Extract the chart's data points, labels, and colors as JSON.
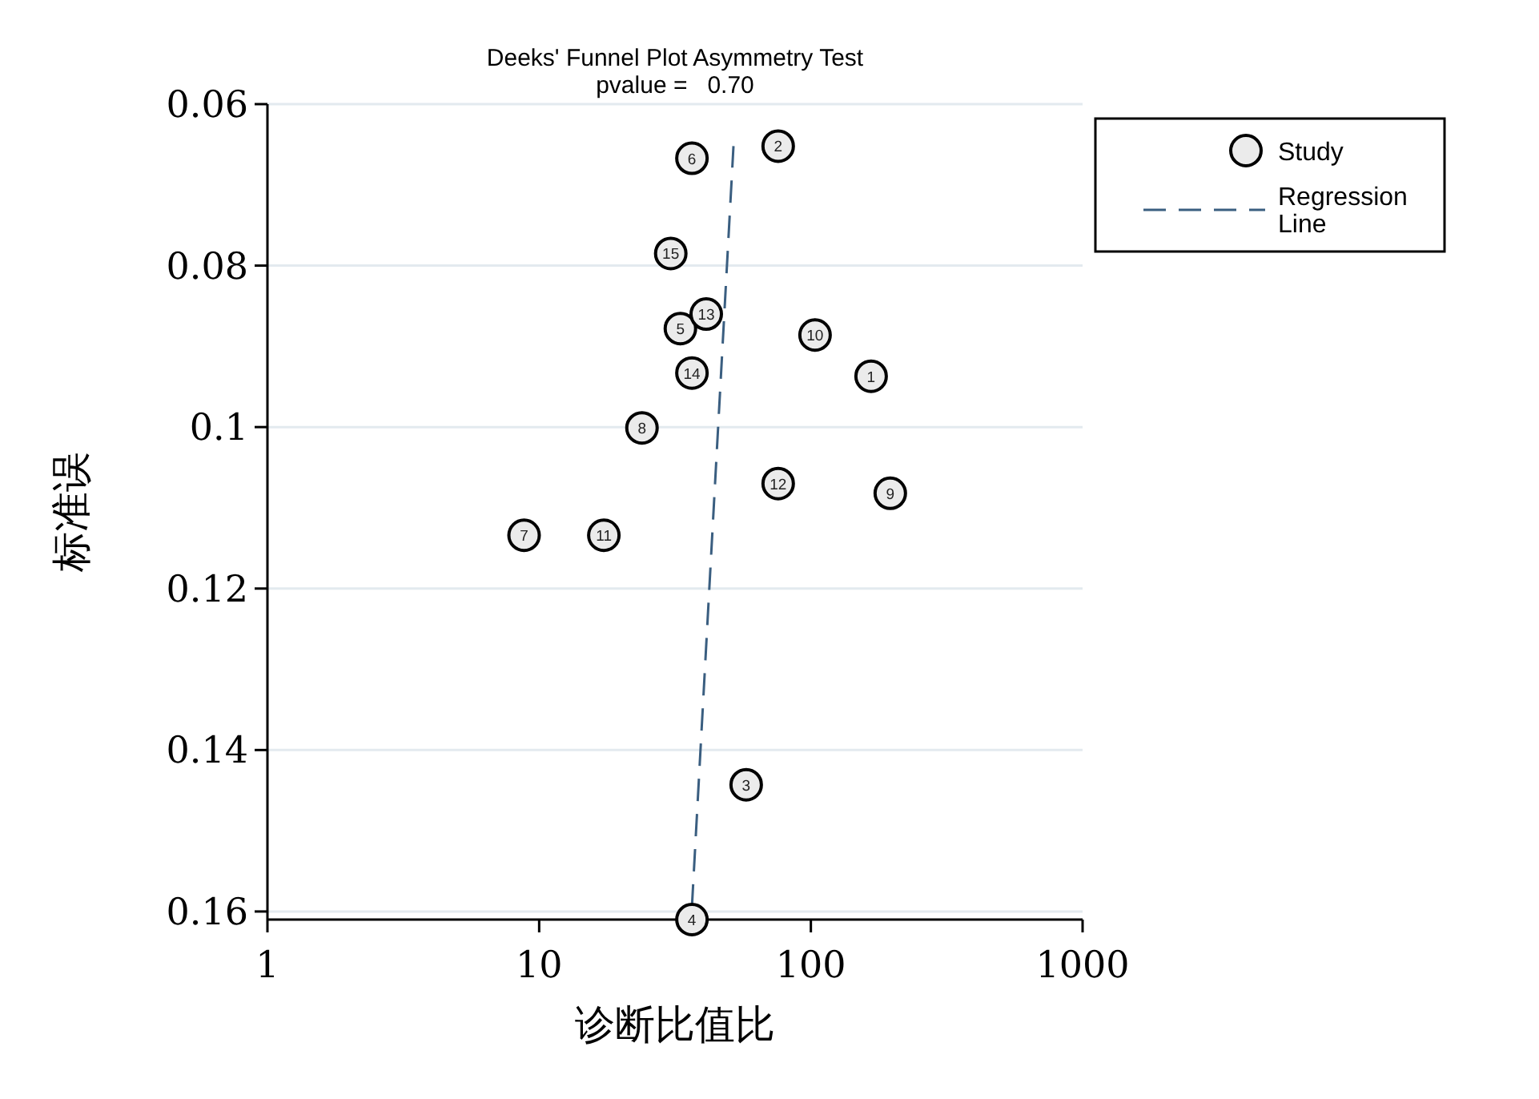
{
  "chart_data": {
    "type": "scatter",
    "title": "Deeks' Funnel Plot Asymmetry Test",
    "subtitle": "pvalue =   0.70",
    "xlabel": "诊断比值比",
    "ylabel": "标准误",
    "log": "x",
    "grid": "y",
    "legend": "top right",
    "xlim": [
      1,
      1000
    ],
    "xticks": [
      1,
      10,
      100,
      1000
    ],
    "ylim": [
      0.161,
      0.06
    ],
    "yticks": [
      0.06,
      0.08,
      0.1,
      0.12,
      0.14,
      0.16
    ],
    "series": [
      {
        "name": "Study",
        "marker": "circle",
        "color": "#ebebeb",
        "x": [
          166.6,
          75.8,
          57.8,
          36.5,
          33.1,
          36.5,
          8.8,
          23.9,
          196,
          103.6,
          17.3,
          75.8,
          41.2,
          36.5,
          30.5
        ],
        "values": [
          0.0937,
          0.0652,
          0.1443,
          0.161,
          0.0878,
          0.0667,
          0.1134,
          0.1001,
          0.1082,
          0.0886,
          0.1134,
          0.107,
          0.086,
          0.0933,
          0.0785
        ]
      },
      {
        "name": "Regression Line",
        "type": "line",
        "line_style": "dashed",
        "marker": "none",
        "color": "#3a5e80",
        "x": [
          36.5,
          51.9
        ],
        "values": [
          0.1594,
          0.0652
        ]
      }
    ],
    "annotations": [
      {
        "text": "1",
        "x": 166.6,
        "y": 0.0937
      },
      {
        "text": "2",
        "x": 75.8,
        "y": 0.0652
      },
      {
        "text": "3",
        "x": 57.8,
        "y": 0.1443
      },
      {
        "text": "4",
        "x": 36.5,
        "y": 0.161
      },
      {
        "text": "5",
        "x": 33.1,
        "y": 0.0878
      },
      {
        "text": "6",
        "x": 36.5,
        "y": 0.0667
      },
      {
        "text": "7",
        "x": 8.8,
        "y": 0.1134
      },
      {
        "text": "8",
        "x": 23.9,
        "y": 0.1001
      },
      {
        "text": "9",
        "x": 196,
        "y": 0.1082
      },
      {
        "text": "10",
        "x": 103.6,
        "y": 0.0886
      },
      {
        "text": "11",
        "x": 17.3,
        "y": 0.1134
      },
      {
        "text": "12",
        "x": 75.8,
        "y": 0.107
      },
      {
        "text": "13",
        "x": 41.2,
        "y": 0.086
      },
      {
        "text": "14",
        "x": 36.5,
        "y": 0.0933
      },
      {
        "text": "15",
        "x": 30.5,
        "y": 0.0785
      }
    ]
  }
}
